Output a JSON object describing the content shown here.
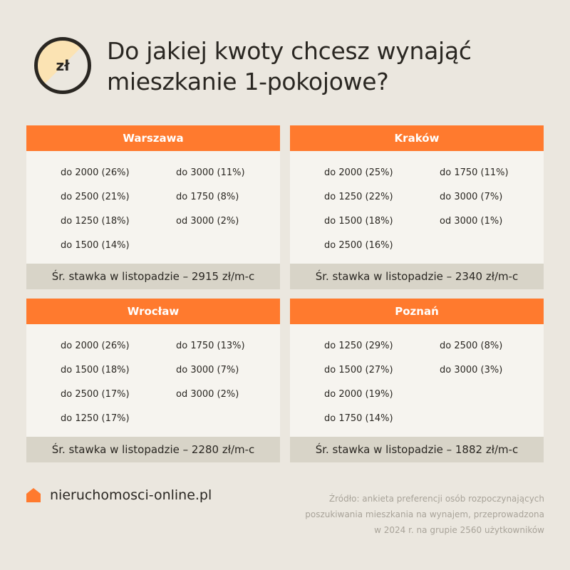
{
  "header": {
    "badge_label": "zł",
    "title": "Do jakiej kwoty chcesz wynająć mieszkanie 1-pokojowe?"
  },
  "cities": [
    {
      "name": "Warszawa",
      "col1": [
        "do 2000 (26%)",
        "do 2500 (21%)",
        "do 1250 (18%)",
        "do 1500 (14%)"
      ],
      "col2": [
        "do 3000 (11%)",
        "do 1750 (8%)",
        "od 3000 (2%)",
        ""
      ],
      "rate": "Śr. stawka w listopadzie – 2915 zł/m-c"
    },
    {
      "name": "Kraków",
      "col1": [
        "do 2000 (25%)",
        "do 1250 (22%)",
        "do 1500 (18%)",
        "do 2500 (16%)"
      ],
      "col2": [
        "do 1750 (11%)",
        "do 3000 (7%)",
        "od 3000 (1%)",
        ""
      ],
      "rate": "Śr. stawka w listopadzie – 2340 zł/m-c"
    },
    {
      "name": "Wrocław",
      "col1": [
        "do 2000 (26%)",
        "do 1500 (18%)",
        "do 2500 (17%)",
        "do 1250 (17%)"
      ],
      "col2": [
        "do 1750 (13%)",
        "do 3000 (7%)",
        "od 3000 (2%)",
        ""
      ],
      "rate": "Śr. stawka w listopadzie – 2280 zł/m-c"
    },
    {
      "name": "Poznań",
      "col1": [
        "do 1250 (29%)",
        "do 1500 (27%)",
        "do 2000 (19%)",
        "do 1750 (14%)"
      ],
      "col2": [
        "do 2500 (8%)",
        "do 3000 (3%)",
        "",
        ""
      ],
      "rate": "Śr. stawka w listopadzie – 1882 zł/m-c"
    }
  ],
  "footer": {
    "brand": "nieruchomosci-online.pl",
    "brand_icon": "house-icon",
    "source_line1": "Źródło: ankieta preferencji osób rozpoczynających",
    "source_line2": "poszukiwania mieszkania na wynajem, przeprowadzona",
    "source_line3": "w 2024 r. na grupie 2560 użytkowników"
  },
  "colors": {
    "background": "#ebe7df",
    "accent": "#ff7a2e",
    "card_body": "#f6f4ef",
    "card_footer": "#d8d4c8"
  }
}
